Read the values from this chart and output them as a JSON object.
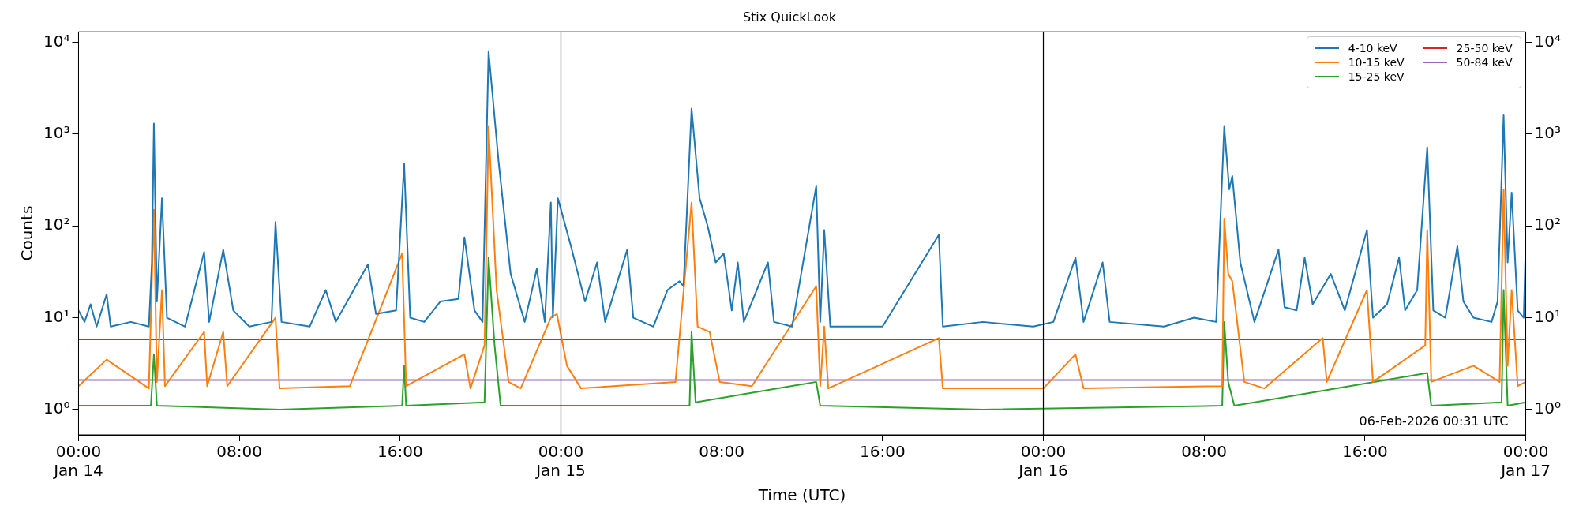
{
  "chart_data": {
    "type": "line",
    "title": "Stix QuickLook",
    "xlabel": "Time (UTC)",
    "ylabel": "Counts",
    "log": true,
    "legend": "top right",
    "grid": false,
    "xlim": [
      "--01-14T00:00",
      "--01-17T00:00"
    ],
    "xticks": [
      {
        "value": "--01-14T00:00",
        "label": "00:00\nJan 14"
      },
      {
        "value": "--01-14T08:00",
        "label": "08:00"
      },
      {
        "value": "--01-14T16:00",
        "label": "16:00"
      },
      {
        "value": "--01-15T00:00",
        "label": "00:00\nJan 15"
      },
      {
        "value": "--01-15T08:00",
        "label": "08:00"
      },
      {
        "value": "--01-15T16:00",
        "label": "16:00"
      },
      {
        "value": "--01-16T00:00",
        "label": "00:00\nJan 16"
      },
      {
        "value": "--01-16T08:00",
        "label": "08:00"
      },
      {
        "value": "--01-16T16:00",
        "label": "16:00"
      },
      {
        "value": "--01-17T00:00",
        "label": "00:00\nJan 17"
      }
    ],
    "ylim": [
      0.53,
      13000
    ],
    "yticks": [
      {
        "value": 1,
        "label": "10⁰"
      },
      {
        "value": 10,
        "label": "10¹"
      },
      {
        "value": 100,
        "label": "10²"
      },
      {
        "value": 1000,
        "label": "10³"
      },
      {
        "value": 10000,
        "label": "10⁴"
      }
    ],
    "ref_lines": [
      {
        "axis": "x",
        "value": "--01-15",
        "color": "#000000"
      },
      {
        "axis": "x",
        "value": "--01-16",
        "color": "#000000"
      }
    ],
    "annotations": [
      "06-Feb-2026 00:31 UTC"
    ],
    "series": [
      {
        "name": "4-10 keV",
        "color": "#1f77b4",
        "x": [
          "--01-14T00:00",
          "--01-14T00:18",
          "--01-14T00:36",
          "--01-14T00:54",
          "--01-14T01:24",
          "--01-14T01:36",
          "--01-14T02:36",
          "--01-14T03:30",
          "--01-14T03:39",
          "--01-14T03:45",
          "--01-14T03:54",
          "--01-14T04:09",
          "--01-14T04:24",
          "--01-14T05:18",
          "--01-14T06:15",
          "--01-14T06:30",
          "--01-14T07:12",
          "--01-14T07:42",
          "--01-14T08:30",
          "--01-14T09:36",
          "--01-14T09:48",
          "--01-14T10:06",
          "--01-14T11:30",
          "--01-14T12:18",
          "--01-14T12:48",
          "--01-14T14:24",
          "--01-14T14:48",
          "--01-14T15:48",
          "--01-14T16:12",
          "--01-14T16:30",
          "--01-14T17:12",
          "--01-14T18:00",
          "--01-14T18:54",
          "--01-14T19:12",
          "--01-14T19:42",
          "--01-14T20:06",
          "--01-14T20:24",
          "--01-14T20:54",
          "--01-14T21:30",
          "--01-14T22:12",
          "--01-14T22:48",
          "--01-14T23:12",
          "--01-14T23:30",
          "--01-14T23:36",
          "--01-14T23:51",
          "--01-15T00:30",
          "--01-15T01:12",
          "--01-15T01:48",
          "--01-15T02:12",
          "--01-15T03:18",
          "--01-15T03:36",
          "--01-15T04:36",
          "--01-15T05:18",
          "--01-15T05:54",
          "--01-15T06:06",
          "--01-15T06:30",
          "--01-15T06:54",
          "--01-15T07:18",
          "--01-15T07:42",
          "--01-15T08:06",
          "--01-15T08:30",
          "--01-15T08:48",
          "--01-15T09:06",
          "--01-15T10:18",
          "--01-15T10:36",
          "--01-15T11:30",
          "--01-15T12:42",
          "--01-15T12:54",
          "--01-15T13:06",
          "--01-15T13:24",
          "--01-15T16:00",
          "--01-15T18:48",
          "--01-15T19:00",
          "--01-15T21:00",
          "--01-15T23:30",
          "--01-16T00:30",
          "--01-16T01:36",
          "--01-16T02:00",
          "--01-16T02:57",
          "--01-16T03:18",
          "--01-16T06:00",
          "--01-16T07:30",
          "--01-16T08:36",
          "--01-16T09:00",
          "--01-16T09:15",
          "--01-16T09:24",
          "--01-16T09:48",
          "--01-16T10:30",
          "--01-16T11:42",
          "--01-16T12:00",
          "--01-16T12:36",
          "--01-16T13:00",
          "--01-16T13:24",
          "--01-16T14:18",
          "--01-16T15:00",
          "--01-16T16:06",
          "--01-16T16:24",
          "--01-16T17:06",
          "--01-16T17:42",
          "--01-16T18:00",
          "--01-16T18:36",
          "--01-16T19:06",
          "--01-16T19:24",
          "--01-16T20:00",
          "--01-16T20:36",
          "--01-16T20:54",
          "--01-16T21:24",
          "--01-16T22:18",
          "--01-16T22:36",
          "--01-16T22:54",
          "--01-16T23:06",
          "--01-16T23:18",
          "--01-16T23:36",
          "--01-16T23:54",
          "--01-17T00:00"
        ],
        "values": [
          12,
          9,
          14,
          8,
          18,
          8,
          9,
          8,
          40,
          1300,
          15,
          200,
          10,
          8,
          52,
          9,
          55,
          12,
          8,
          9,
          110,
          9,
          8,
          20,
          9,
          38,
          11,
          12,
          480,
          10,
          9,
          15,
          16,
          75,
          12,
          9,
          8000,
          500,
          30,
          9,
          34,
          9,
          180,
          10,
          200,
          60,
          15,
          40,
          9,
          55,
          10,
          8,
          20,
          25,
          22,
          1900,
          200,
          100,
          40,
          50,
          12,
          40,
          9,
          40,
          9,
          8,
          270,
          9,
          90,
          8,
          8,
          80,
          8,
          9,
          8,
          9,
          45,
          9,
          40,
          9,
          8,
          10,
          9,
          1200,
          250,
          350,
          40,
          9,
          55,
          13,
          12,
          45,
          14,
          30,
          12,
          90,
          10,
          14,
          45,
          12,
          20,
          720,
          12,
          10,
          60,
          15,
          10,
          9,
          15,
          1600,
          40,
          230,
          12,
          10,
          65
        ]
      },
      {
        "name": "10-15 keV",
        "color": "#ff7f0e",
        "x": [
          "--01-14T00:00",
          "--01-14T01:24",
          "--01-14T03:30",
          "--01-14T03:45",
          "--01-14T03:54",
          "--01-14T04:09",
          "--01-14T04:18",
          "--01-14T06:15",
          "--01-14T06:24",
          "--01-14T07:12",
          "--01-14T07:24",
          "--01-14T09:48",
          "--01-14T10:00",
          "--01-14T13:30",
          "--01-14T16:06",
          "--01-14T16:18",
          "--01-14T19:12",
          "--01-14T19:30",
          "--01-14T20:12",
          "--01-14T20:24",
          "--01-14T20:48",
          "--01-14T21:24",
          "--01-14T22:00",
          "--01-14T23:30",
          "--01-14T23:48",
          "--01-15T00:18",
          "--01-15T01:00",
          "--01-15T05:42",
          "--01-15T06:30",
          "--01-15T06:48",
          "--01-15T07:24",
          "--01-15T07:54",
          "--01-15T09:30",
          "--01-15T12:42",
          "--01-15T12:54",
          "--01-15T13:06",
          "--01-15T13:18",
          "--01-15T18:48",
          "--01-15T19:00",
          "--01-16T00:00",
          "--01-16T01:36",
          "--01-16T02:00",
          "--01-16T08:54",
          "--01-16T09:00",
          "--01-16T09:12",
          "--01-16T09:24",
          "--01-16T10:00",
          "--01-16T11:00",
          "--01-16T13:54",
          "--01-16T14:06",
          "--01-16T16:06",
          "--01-16T16:24",
          "--01-16T19:00",
          "--01-16T19:06",
          "--01-16T19:18",
          "--01-16T21:24",
          "--01-16T22:42",
          "--01-16T22:54",
          "--01-16T23:06",
          "--01-16T23:18",
          "--01-16T23:36",
          "--01-17T00:00"
        ],
        "values": [
          1.8,
          3.5,
          1.7,
          150,
          2,
          20,
          1.8,
          7,
          1.8,
          7,
          1.8,
          10,
          1.7,
          1.8,
          50,
          1.8,
          4,
          1.7,
          5,
          1200,
          20,
          2,
          1.7,
          10,
          11,
          3,
          1.7,
          2,
          180,
          8,
          7,
          2,
          1.8,
          22,
          1.8,
          8,
          1.7,
          6,
          1.7,
          1.7,
          4,
          1.7,
          1.8,
          120,
          30,
          25,
          2,
          1.7,
          6,
          2,
          20,
          2,
          5,
          90,
          2,
          3,
          2,
          250,
          3,
          20,
          1.8,
          2
        ]
      },
      {
        "name": "15-25 keV",
        "color": "#2ca02c",
        "x": [
          "--01-14T00:00",
          "--01-14T03:36",
          "--01-14T03:45",
          "--01-14T03:54",
          "--01-14T10:00",
          "--01-14T16:06",
          "--01-14T16:12",
          "--01-14T16:18",
          "--01-14T20:12",
          "--01-14T20:24",
          "--01-14T20:42",
          "--01-14T21:00",
          "--01-15T06:24",
          "--01-15T06:30",
          "--01-15T06:42",
          "--01-15T12:42",
          "--01-15T12:54",
          "--01-15T21:00",
          "--01-16T08:54",
          "--01-16T09:00",
          "--01-16T09:12",
          "--01-16T09:30",
          "--01-16T19:06",
          "--01-16T19:18",
          "--01-16T22:48",
          "--01-16T22:54",
          "--01-16T23:06",
          "--01-17T00:00"
        ],
        "values": [
          1.1,
          1.1,
          4,
          1.1,
          1,
          1.1,
          3,
          1.1,
          1.2,
          45,
          5,
          1.1,
          1.1,
          7,
          1.2,
          2,
          1.1,
          1,
          1.1,
          9,
          2,
          1.1,
          2.5,
          1.1,
          1.2,
          20,
          1.1,
          1.2
        ]
      },
      {
        "name": "25-50 keV",
        "color": "#d62728",
        "x": [
          "--01-14T00:00",
          "--01-14T12:00",
          "--01-15T00:00",
          "--01-15T12:00",
          "--01-16T00:00",
          "--01-16T12:00",
          "--01-17T00:00"
        ],
        "values": [
          5.8,
          5.8,
          5.8,
          5.8,
          5.8,
          5.8,
          5.8
        ]
      },
      {
        "name": "50-84 keV",
        "color": "#9467bd",
        "x": [
          "--01-14T00:00",
          "--01-14T12:00",
          "--01-15T00:00",
          "--01-15T12:00",
          "--01-16T00:00",
          "--01-16T12:00",
          "--01-17T00:00"
        ],
        "values": [
          2.1,
          2.1,
          2.1,
          2.1,
          2.1,
          2.1,
          2.1
        ]
      }
    ]
  }
}
